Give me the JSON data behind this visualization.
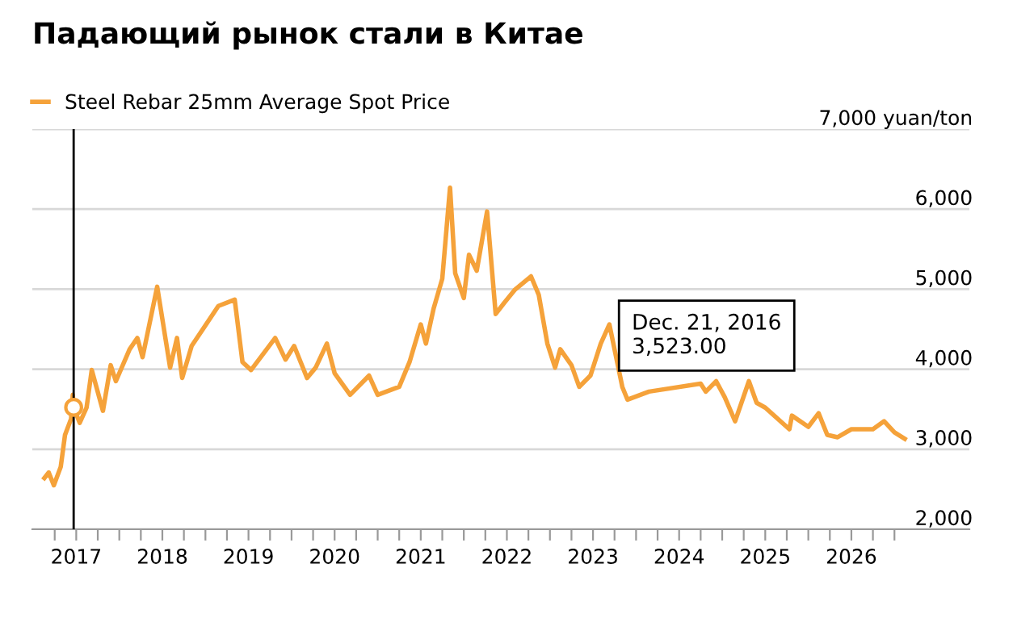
{
  "chart_data": {
    "type": "line",
    "title": "Падающий рынок стали в Китае",
    "x": [
      2016.63,
      2016.68,
      2016.74,
      2016.82,
      2016.87,
      2016.94,
      2016.96,
      2016.97,
      2017.04,
      2017.12,
      2017.18,
      2017.31,
      2017.4,
      2017.46,
      2017.62,
      2017.71,
      2017.77,
      2017.94,
      2018.09,
      2018.17,
      2018.23,
      2018.34,
      2018.65,
      2018.84,
      2018.93,
      2019.03,
      2019.31,
      2019.43,
      2019.53,
      2019.68,
      2019.78,
      2019.91,
      2020.0,
      2020.18,
      2020.4,
      2020.5,
      2020.75,
      2020.87,
      2021.0,
      2021.06,
      2021.15,
      2021.25,
      2021.34,
      2021.4,
      2021.5,
      2021.56,
      2021.65,
      2021.77,
      2021.87,
      2021.97,
      2022.09,
      2022.28,
      2022.37,
      2022.47,
      2022.56,
      2022.62,
      2022.75,
      2022.84,
      2022.97,
      2023.09,
      2023.19,
      2023.34,
      2023.4,
      2023.65,
      2024.25,
      2024.31,
      2024.43,
      2024.53,
      2024.65,
      2024.81,
      2024.9,
      2025.0,
      2025.28,
      2025.31,
      2025.5,
      2025.62,
      2025.72,
      2025.84,
      2026.0,
      2026.25,
      2026.38,
      2026.5,
      2026.62
    ],
    "series": [
      {
        "name": "Steel Rebar 25mm Average Spot Price",
        "color": "#f5a23a",
        "values": [
          2640,
          2710,
          2550,
          2780,
          3180,
          3380,
          3680,
          3523,
          3330,
          3520,
          3990,
          3480,
          4050,
          3850,
          4250,
          4390,
          4150,
          5030,
          4020,
          4390,
          3890,
          4290,
          4790,
          4870,
          4090,
          3990,
          4390,
          4120,
          4290,
          3890,
          4020,
          4320,
          3950,
          3680,
          3920,
          3680,
          3780,
          4090,
          4560,
          4320,
          4760,
          5130,
          6270,
          5200,
          4890,
          5430,
          5230,
          5970,
          4690,
          4830,
          4990,
          5160,
          4930,
          4320,
          4020,
          4250,
          4050,
          3780,
          3920,
          4320,
          4560,
          3780,
          3620,
          3720,
          3820,
          3720,
          3850,
          3650,
          3350,
          3850,
          3580,
          3520,
          3250,
          3420,
          3280,
          3450,
          3180,
          3150,
          3250,
          3250,
          3350,
          3210,
          3130
        ]
      }
    ],
    "xlim": [
      2016.49,
      2027.37
    ],
    "ylim": [
      2000,
      7000
    ],
    "xticks": [
      2017,
      2018,
      2019,
      2020,
      2021,
      2022,
      2023,
      2024,
      2025,
      2026,
      {
        "value": 2016.75,
        "label": null
      },
      {
        "value": 2017.25,
        "label": null
      },
      {
        "value": 2017.5,
        "label": null
      },
      {
        "value": 2017.75,
        "label": null
      },
      {
        "value": 2018.25,
        "label": null
      },
      {
        "value": 2018.5,
        "label": null
      },
      {
        "value": 2018.75,
        "label": null
      },
      {
        "value": 2019.25,
        "label": null
      },
      {
        "value": 2019.5,
        "label": null
      },
      {
        "value": 2019.75,
        "label": null
      },
      {
        "value": 2020.25,
        "label": null
      },
      {
        "value": 2020.5,
        "label": null
      },
      {
        "value": 2020.75,
        "label": null
      },
      {
        "value": 2021.25,
        "label": null
      },
      {
        "value": 2021.5,
        "label": null
      },
      {
        "value": 2021.75,
        "label": null
      },
      {
        "value": 2022.25,
        "label": null
      },
      {
        "value": 2022.5,
        "label": null
      },
      {
        "value": 2022.75,
        "label": null
      },
      {
        "value": 2023.25,
        "label": null
      },
      {
        "value": 2023.5,
        "label": null
      },
      {
        "value": 2023.75,
        "label": null
      },
      {
        "value": 2024.25,
        "label": null
      },
      {
        "value": 2024.5,
        "label": null
      },
      {
        "value": 2024.75,
        "label": null
      },
      {
        "value": 2025.25,
        "label": null
      },
      {
        "value": 2025.5,
        "label": null
      },
      {
        "value": 2025.75,
        "label": null
      },
      {
        "value": 2026.25,
        "label": null
      },
      {
        "value": 2026.5,
        "label": null
      }
    ],
    "yticks": [
      {
        "value": 2000,
        "label": "2,000"
      },
      {
        "value": 3000,
        "label": "3,000"
      },
      {
        "value": 4000,
        "label": "4,000"
      },
      {
        "value": 5000,
        "label": "5,000"
      },
      {
        "value": 6000,
        "label": "6,000"
      },
      {
        "value": 7000,
        "label": "7,000 yuan/ton"
      }
    ],
    "grid": "y",
    "legend": "top left",
    "marker": "none",
    "line_style": "solid",
    "ref_lines": [
      {
        "axis": "x",
        "value": 2016.97,
        "color": "#000000"
      }
    ],
    "annotations": [
      "Dec. 21, 2016\n3,523.00"
    ]
  }
}
